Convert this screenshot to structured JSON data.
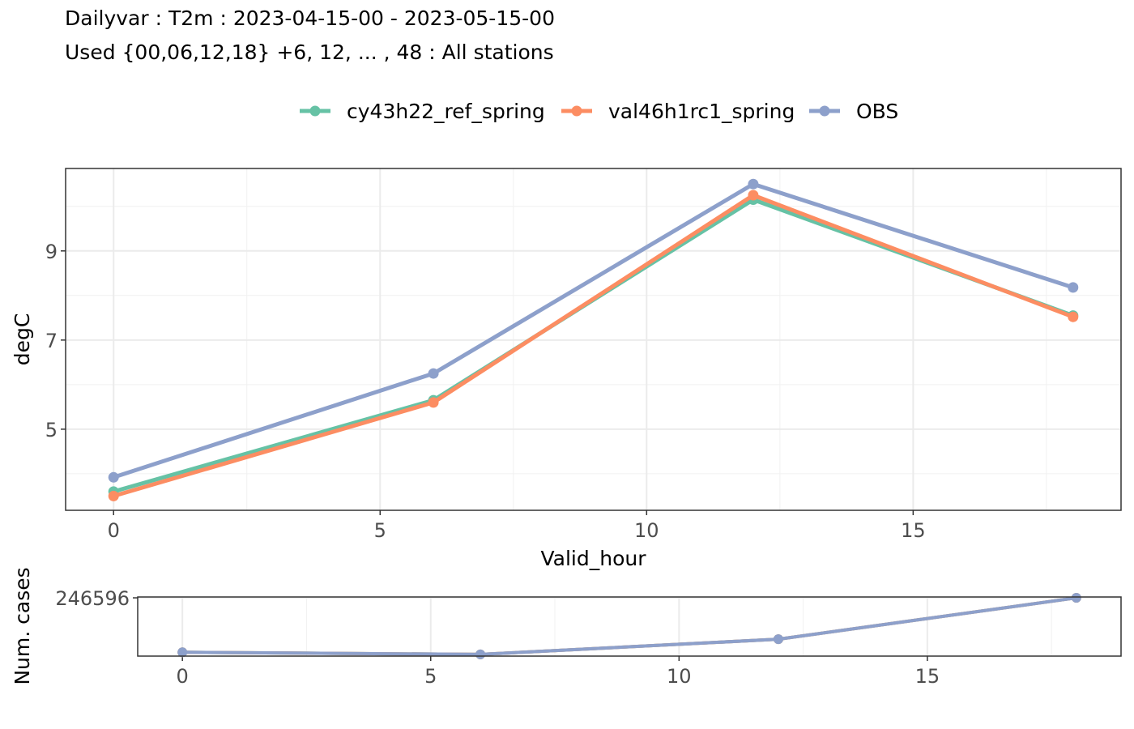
{
  "title": "Dailyvar : T2m : 2023-04-15-00 - 2023-05-15-00",
  "subtitle": "Used {00,06,12,18} +6, 12, ... , 48 : All stations",
  "colors": {
    "cy43h22_ref_spring": "#66c2a5",
    "val46h1rc1_spring": "#fc8d62",
    "OBS": "#8da0cb"
  },
  "chart_data": [
    {
      "type": "line",
      "xlabel": "Valid_hour",
      "ylabel": "degC",
      "xlim": [
        -0.9,
        18.9
      ],
      "ylim": [
        3.18,
        10.85
      ],
      "xticks": [
        0,
        5,
        10,
        15
      ],
      "yticks": [
        5,
        7,
        9
      ],
      "grid": true,
      "legend": "top",
      "x": [
        0,
        6,
        12,
        18
      ],
      "series": [
        {
          "name": "cy43h22_ref_spring",
          "values": [
            3.6,
            5.65,
            10.15,
            7.55
          ]
        },
        {
          "name": "val46h1rc1_spring",
          "values": [
            3.5,
            5.6,
            10.25,
            7.52
          ]
        },
        {
          "name": "OBS",
          "values": [
            3.92,
            6.25,
            10.5,
            8.18
          ]
        }
      ]
    },
    {
      "type": "line",
      "ylabel": "Num. cases",
      "xlim": [
        -0.9,
        18.9
      ],
      "ylim": [
        219000,
        247000
      ],
      "xticks": [
        0,
        5,
        10,
        15
      ],
      "yticks": [
        246596
      ],
      "grid": true,
      "x": [
        0,
        6,
        12,
        18
      ],
      "series": [
        {
          "name": "cy43h22_ref_spring",
          "values": [
            220800,
            219800,
            227000,
            246596
          ]
        },
        {
          "name": "val46h1rc1_spring",
          "values": [
            220800,
            219800,
            227000,
            246596
          ]
        },
        {
          "name": "OBS",
          "values": [
            220800,
            219800,
            227000,
            246596
          ]
        }
      ]
    }
  ]
}
